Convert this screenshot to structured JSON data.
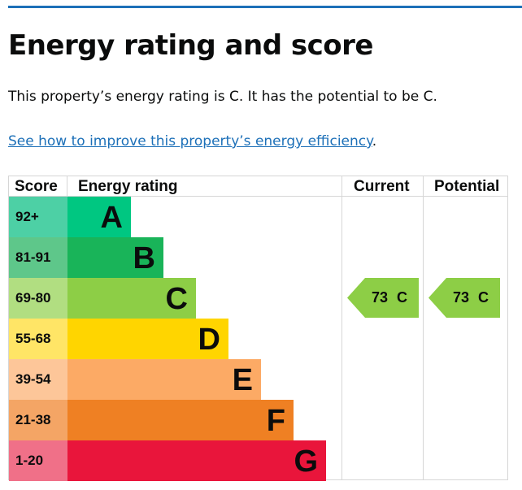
{
  "title": "Energy rating and score",
  "summary": "This property’s energy rating is C. It has the potential to be C.",
  "link_text": "See how to improve this property’s energy efficiency",
  "link_suffix": ".",
  "table": {
    "headers": {
      "score": "Score",
      "rating": "Energy rating",
      "current": "Current",
      "potential": "Potential"
    },
    "bands": [
      {
        "score": "92+",
        "letter": "A",
        "color": "#00c781",
        "light": "#4dd0a5"
      },
      {
        "score": "81-91",
        "letter": "B",
        "color": "#19b459",
        "light": "#5ec78a"
      },
      {
        "score": "69-80",
        "letter": "C",
        "color": "#8dce46",
        "light": "#b1de81"
      },
      {
        "score": "55-68",
        "letter": "D",
        "color": "#ffd500",
        "light": "#ffe566"
      },
      {
        "score": "39-54",
        "letter": "E",
        "color": "#fcaa65",
        "light": "#fdc699"
      },
      {
        "score": "21-38",
        "letter": "F",
        "color": "#ef8023",
        "light": "#f4a565"
      },
      {
        "score": "1-20",
        "letter": "G",
        "color": "#e9153b",
        "light": "#f07088"
      }
    ],
    "current": {
      "label": "73 C",
      "band": "C",
      "color": "#8dce46"
    },
    "potential": {
      "label": "73 C",
      "band": "C",
      "color": "#8dce46"
    }
  }
}
